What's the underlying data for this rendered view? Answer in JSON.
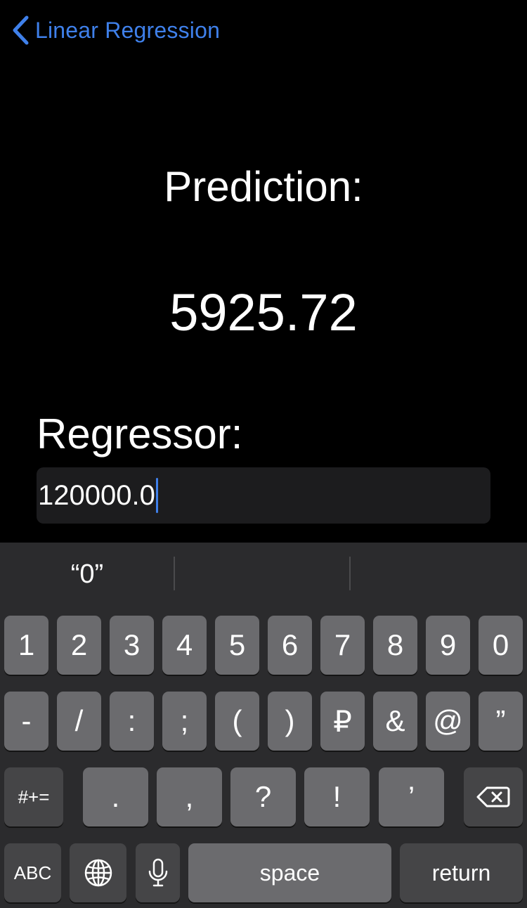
{
  "nav": {
    "back_label": "Linear Regression",
    "back_icon": "chevron-left-icon"
  },
  "prediction": {
    "title": "Prediction:",
    "value": "5925.72"
  },
  "regressor": {
    "label": "Regressor:",
    "value": "120000.0"
  },
  "keyboard": {
    "suggestions": [
      "“0”",
      "",
      ""
    ],
    "row1": [
      "1",
      "2",
      "3",
      "4",
      "5",
      "6",
      "7",
      "8",
      "9",
      "0"
    ],
    "row2": [
      "-",
      "/",
      ":",
      ";",
      "(",
      ")",
      "₽",
      "&",
      "@",
      "”"
    ],
    "row3": {
      "symbols": "#+=",
      "keys": [
        ".",
        ",",
        "?",
        "!",
        "’"
      ],
      "delete_icon": "backspace-icon"
    },
    "row4": {
      "abc": "ABC",
      "globe_icon": "globe-icon",
      "mic_icon": "microphone-icon",
      "space": "space",
      "return": "return"
    }
  },
  "colors": {
    "accent": "#3f80ea",
    "background": "#000000",
    "field": "#1c1c1e",
    "keyboard_bg": "#2b2b2d",
    "key": "#6b6b6e",
    "key_dark": "#454547"
  }
}
